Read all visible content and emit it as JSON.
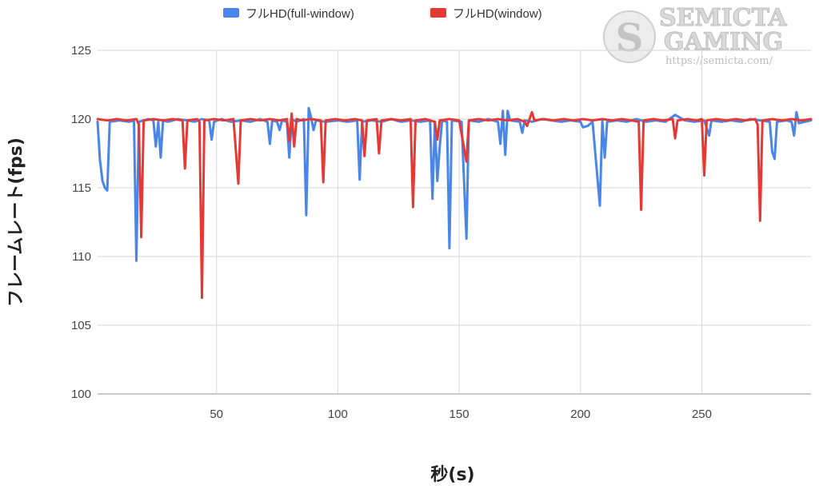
{
  "watermark": {
    "line1": "SEMICTA",
    "line2": "GAMING",
    "url": "https://semicta.com/",
    "logo_icon": "dragon-emblem-icon"
  },
  "chart_data": {
    "type": "line",
    "title": "",
    "xlabel": "秒(s)",
    "ylabel": "フレームレート(fps)",
    "xlim": [
      1,
      295
    ],
    "ylim": [
      100,
      125
    ],
    "x_ticks": [
      50,
      100,
      150,
      200,
      250
    ],
    "y_ticks": [
      100,
      105,
      110,
      115,
      120,
      125
    ],
    "grid": true,
    "legend_position": "top",
    "series": [
      {
        "name": "フルHD(full-window)",
        "color": "#4a86e8",
        "points": [
          [
            1,
            119.8
          ],
          [
            2,
            117
          ],
          [
            3,
            115.5
          ],
          [
            4,
            115
          ],
          [
            5,
            114.8
          ],
          [
            6,
            119.8
          ],
          [
            10,
            119.9
          ],
          [
            14,
            119.8
          ],
          [
            16,
            119.9
          ],
          [
            17,
            109.7
          ],
          [
            18,
            119.8
          ],
          [
            22,
            120
          ],
          [
            24,
            119.9
          ],
          [
            25,
            118
          ],
          [
            26,
            119.8
          ],
          [
            27,
            117.2
          ],
          [
            28,
            119.9
          ],
          [
            30,
            119.8
          ],
          [
            34,
            120
          ],
          [
            38,
            119.9
          ],
          [
            41,
            119.8
          ],
          [
            44,
            120
          ],
          [
            47,
            119.9
          ],
          [
            48,
            118.5
          ],
          [
            49,
            119.8
          ],
          [
            52,
            120
          ],
          [
            56,
            119.8
          ],
          [
            60,
            119.9
          ],
          [
            64,
            119.8
          ],
          [
            68,
            120
          ],
          [
            71,
            119.8
          ],
          [
            72,
            118.2
          ],
          [
            73,
            119.9
          ],
          [
            75,
            119.8
          ],
          [
            76,
            119.2
          ],
          [
            77,
            119.9
          ],
          [
            79,
            119.8
          ],
          [
            80,
            117.2
          ],
          [
            81,
            120
          ],
          [
            83,
            119.8
          ],
          [
            86,
            120
          ],
          [
            87,
            113
          ],
          [
            88,
            120.8
          ],
          [
            89,
            120.1
          ],
          [
            90,
            119.2
          ],
          [
            91,
            119.9
          ],
          [
            95,
            119.8
          ],
          [
            100,
            119.9
          ],
          [
            104,
            119.8
          ],
          [
            108,
            119.9
          ],
          [
            109,
            115.6
          ],
          [
            110,
            119.8
          ],
          [
            114,
            119.9
          ],
          [
            118,
            119.8
          ],
          [
            122,
            120
          ],
          [
            126,
            119.8
          ],
          [
            130,
            119.9
          ],
          [
            134,
            119.8
          ],
          [
            138,
            119.9
          ],
          [
            139,
            114.2
          ],
          [
            140,
            119.8
          ],
          [
            141,
            115.5
          ],
          [
            142,
            118
          ],
          [
            143,
            119.9
          ],
          [
            145,
            119.8
          ],
          [
            146,
            110.6
          ],
          [
            147,
            119.9
          ],
          [
            151,
            119.8
          ],
          [
            153,
            111.3
          ],
          [
            154,
            119.9
          ],
          [
            158,
            119.8
          ],
          [
            162,
            120
          ],
          [
            166,
            119.8
          ],
          [
            167,
            118.2
          ],
          [
            168,
            120.6
          ],
          [
            169,
            117.4
          ],
          [
            170,
            120.6
          ],
          [
            171,
            119.9
          ],
          [
            175,
            119.8
          ],
          [
            176,
            119
          ],
          [
            177,
            119.9
          ],
          [
            180,
            119.8
          ],
          [
            184,
            120
          ],
          [
            188,
            119.9
          ],
          [
            192,
            119.8
          ],
          [
            196,
            119.9
          ],
          [
            200,
            119.8
          ],
          [
            201,
            119.4
          ],
          [
            203,
            119.5
          ],
          [
            205,
            119.8
          ],
          [
            208,
            113.7
          ],
          [
            209,
            119.9
          ],
          [
            210,
            117.2
          ],
          [
            211,
            119.8
          ],
          [
            215,
            119.9
          ],
          [
            219,
            119.8
          ],
          [
            223,
            120
          ],
          [
            227,
            119.8
          ],
          [
            231,
            119.9
          ],
          [
            235,
            119.8
          ],
          [
            239,
            120.3
          ],
          [
            243,
            119.9
          ],
          [
            247,
            119.8
          ],
          [
            251,
            119.9
          ],
          [
            253,
            118.8
          ],
          [
            254,
            119.9
          ],
          [
            258,
            119.8
          ],
          [
            262,
            119.9
          ],
          [
            266,
            119.8
          ],
          [
            270,
            120
          ],
          [
            274,
            119.9
          ],
          [
            278,
            119.8
          ],
          [
            279,
            117.6
          ],
          [
            280,
            117.1
          ],
          [
            281,
            119.8
          ],
          [
            285,
            119.9
          ],
          [
            287,
            119.8
          ],
          [
            288,
            118.8
          ],
          [
            289,
            120.5
          ],
          [
            290,
            119.7
          ],
          [
            295,
            119.9
          ]
        ]
      },
      {
        "name": "フルHD(window)",
        "color": "#e53935",
        "points": [
          [
            1,
            120
          ],
          [
            5,
            119.9
          ],
          [
            9,
            120
          ],
          [
            13,
            119.9
          ],
          [
            17,
            120
          ],
          [
            18,
            119.6
          ],
          [
            19,
            111.4
          ],
          [
            20,
            119.9
          ],
          [
            24,
            120
          ],
          [
            28,
            119.9
          ],
          [
            32,
            120
          ],
          [
            36,
            119.9
          ],
          [
            37,
            116.4
          ],
          [
            38,
            119.9
          ],
          [
            42,
            120
          ],
          [
            43,
            119.8
          ],
          [
            44,
            107
          ],
          [
            45,
            119.9
          ],
          [
            49,
            120
          ],
          [
            53,
            119.9
          ],
          [
            57,
            120
          ],
          [
            59,
            115.3
          ],
          [
            60,
            119.9
          ],
          [
            64,
            120
          ],
          [
            68,
            119.9
          ],
          [
            72,
            120
          ],
          [
            76,
            119.9
          ],
          [
            79,
            120
          ],
          [
            80,
            118.4
          ],
          [
            81,
            120.4
          ],
          [
            82,
            118
          ],
          [
            83,
            120
          ],
          [
            85,
            119.9
          ],
          [
            89,
            120
          ],
          [
            93,
            119.9
          ],
          [
            94,
            115.4
          ],
          [
            95,
            119.9
          ],
          [
            99,
            120
          ],
          [
            103,
            119.9
          ],
          [
            107,
            120
          ],
          [
            110,
            119.9
          ],
          [
            111,
            117.3
          ],
          [
            112,
            119.9
          ],
          [
            116,
            120
          ],
          [
            117,
            117.5
          ],
          [
            118,
            119.9
          ],
          [
            122,
            120
          ],
          [
            126,
            119.9
          ],
          [
            130,
            120
          ],
          [
            131,
            113.6
          ],
          [
            132,
            119.9
          ],
          [
            136,
            120
          ],
          [
            140,
            119.8
          ],
          [
            141,
            118.5
          ],
          [
            142,
            119.9
          ],
          [
            146,
            120
          ],
          [
            150,
            119.9
          ],
          [
            153,
            116.9
          ],
          [
            154,
            119.9
          ],
          [
            158,
            120
          ],
          [
            162,
            119.9
          ],
          [
            166,
            120
          ],
          [
            170,
            119.9
          ],
          [
            174,
            120
          ],
          [
            177,
            119.8
          ],
          [
            178,
            119.5
          ],
          [
            180,
            120.5
          ],
          [
            181,
            119.9
          ],
          [
            185,
            120
          ],
          [
            189,
            119.9
          ],
          [
            193,
            120
          ],
          [
            197,
            119.9
          ],
          [
            201,
            120
          ],
          [
            205,
            119.9
          ],
          [
            209,
            120
          ],
          [
            213,
            119.9
          ],
          [
            217,
            120
          ],
          [
            221,
            119.9
          ],
          [
            224,
            119.8
          ],
          [
            225,
            113.4
          ],
          [
            226,
            119.9
          ],
          [
            230,
            120
          ],
          [
            234,
            119.9
          ],
          [
            238,
            120
          ],
          [
            239,
            118.6
          ],
          [
            240,
            119.9
          ],
          [
            244,
            120
          ],
          [
            248,
            119.9
          ],
          [
            250,
            120
          ],
          [
            251,
            115.9
          ],
          [
            252,
            119.9
          ],
          [
            256,
            120
          ],
          [
            260,
            119.9
          ],
          [
            264,
            120
          ],
          [
            268,
            119.9
          ],
          [
            272,
            120
          ],
          [
            273,
            119.6
          ],
          [
            274,
            112.6
          ],
          [
            275,
            119.9
          ],
          [
            279,
            120
          ],
          [
            283,
            119.9
          ],
          [
            287,
            120
          ],
          [
            291,
            119.9
          ],
          [
            295,
            120
          ]
        ]
      }
    ]
  }
}
